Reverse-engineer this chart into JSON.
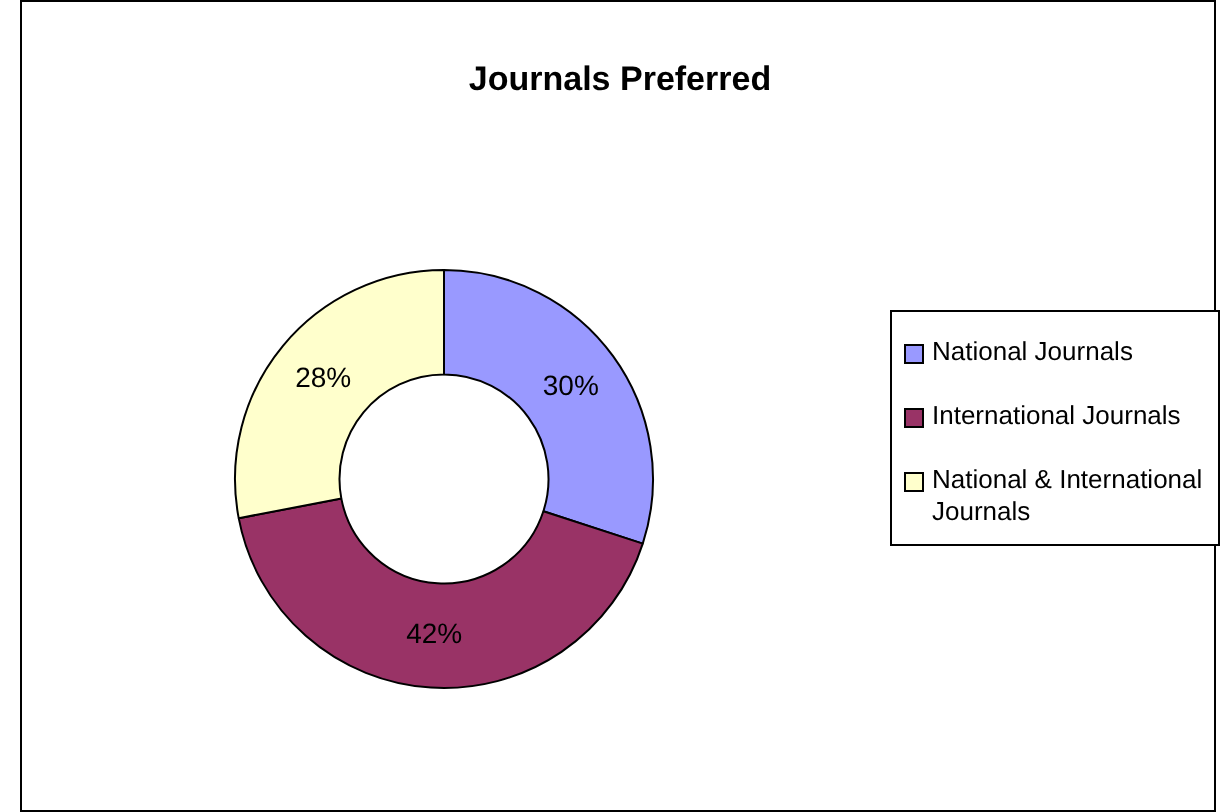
{
  "chart_data": {
    "type": "donut",
    "title": "Journals Preferred",
    "categories": [
      "National Journals",
      "International Journals",
      "National & International Journals"
    ],
    "values": [
      30,
      42,
      28
    ],
    "colors": [
      "#9999ff",
      "#993366",
      "#ffffcc"
    ],
    "value_labels": [
      "30%",
      "42%",
      "28%"
    ],
    "legend": "right"
  }
}
